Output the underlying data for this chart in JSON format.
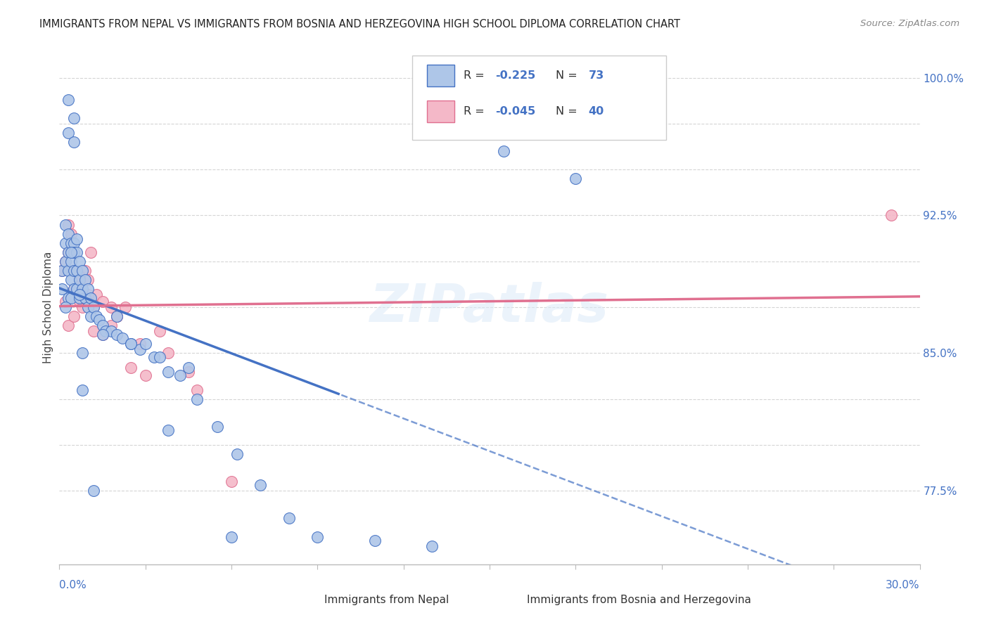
{
  "title": "IMMIGRANTS FROM NEPAL VS IMMIGRANTS FROM BOSNIA AND HERZEGOVINA HIGH SCHOOL DIPLOMA CORRELATION CHART",
  "source": "Source: ZipAtlas.com",
  "ylabel": "High School Diploma",
  "xlim": [
    0.0,
    0.3
  ],
  "ylim": [
    0.735,
    1.015
  ],
  "nepal_color": "#aec6e8",
  "nepal_line_color": "#4472c4",
  "bosnia_color": "#f4b8c8",
  "bosnia_line_color": "#e07090",
  "watermark": "ZIPatlas",
  "legend_label_nepal": "Immigrants from Nepal",
  "legend_label_bosnia": "Immigrants from Bosnia and Herzegovina",
  "right_ytick_values": [
    0.775,
    0.85,
    0.925,
    1.0
  ],
  "right_ytick_labels": [
    "77.5%",
    "85.0%",
    "92.5%",
    "100.0%"
  ],
  "nepal_x": [
    0.001,
    0.001,
    0.002,
    0.002,
    0.002,
    0.003,
    0.003,
    0.003,
    0.003,
    0.004,
    0.004,
    0.004,
    0.004,
    0.005,
    0.005,
    0.005,
    0.005,
    0.006,
    0.006,
    0.006,
    0.007,
    0.007,
    0.007,
    0.008,
    0.008,
    0.009,
    0.009,
    0.01,
    0.01,
    0.011,
    0.011,
    0.012,
    0.013,
    0.014,
    0.015,
    0.016,
    0.018,
    0.02,
    0.022,
    0.025,
    0.028,
    0.03,
    0.033,
    0.038,
    0.042,
    0.048,
    0.055,
    0.062,
    0.07,
    0.08,
    0.09,
    0.11,
    0.13,
    0.155,
    0.18,
    0.02,
    0.035,
    0.008,
    0.012,
    0.003,
    0.005,
    0.038,
    0.002,
    0.004,
    0.006,
    0.007,
    0.003,
    0.008,
    0.015,
    0.025,
    0.045,
    0.06,
    0.005
  ],
  "nepal_y": [
    0.895,
    0.885,
    0.92,
    0.91,
    0.9,
    0.915,
    0.905,
    0.895,
    0.88,
    0.91,
    0.9,
    0.89,
    0.88,
    0.91,
    0.905,
    0.895,
    0.885,
    0.905,
    0.895,
    0.885,
    0.9,
    0.89,
    0.88,
    0.895,
    0.885,
    0.89,
    0.88,
    0.885,
    0.875,
    0.88,
    0.87,
    0.875,
    0.87,
    0.868,
    0.865,
    0.862,
    0.862,
    0.86,
    0.858,
    0.855,
    0.852,
    0.855,
    0.848,
    0.84,
    0.838,
    0.825,
    0.81,
    0.795,
    0.778,
    0.76,
    0.75,
    0.748,
    0.745,
    0.96,
    0.945,
    0.87,
    0.848,
    0.83,
    0.775,
    0.988,
    0.978,
    0.808,
    0.875,
    0.905,
    0.912,
    0.882,
    0.97,
    0.85,
    0.86,
    0.855,
    0.842,
    0.75,
    0.965
  ],
  "bosnia_x": [
    0.001,
    0.002,
    0.003,
    0.003,
    0.004,
    0.004,
    0.005,
    0.005,
    0.006,
    0.007,
    0.008,
    0.009,
    0.01,
    0.011,
    0.012,
    0.013,
    0.015,
    0.018,
    0.02,
    0.023,
    0.028,
    0.035,
    0.048,
    0.003,
    0.007,
    0.012,
    0.025,
    0.038,
    0.01,
    0.015,
    0.005,
    0.008,
    0.002,
    0.02,
    0.03,
    0.045,
    0.06,
    0.018,
    0.007,
    0.29
  ],
  "bosnia_y": [
    0.895,
    0.9,
    0.92,
    0.905,
    0.915,
    0.905,
    0.895,
    0.885,
    0.885,
    0.878,
    0.875,
    0.895,
    0.89,
    0.905,
    0.875,
    0.882,
    0.878,
    0.875,
    0.87,
    0.875,
    0.855,
    0.862,
    0.83,
    0.865,
    0.89,
    0.862,
    0.842,
    0.85,
    0.882,
    0.86,
    0.87,
    0.88,
    0.878,
    0.87,
    0.838,
    0.84,
    0.78,
    0.865,
    0.892,
    0.925
  ]
}
